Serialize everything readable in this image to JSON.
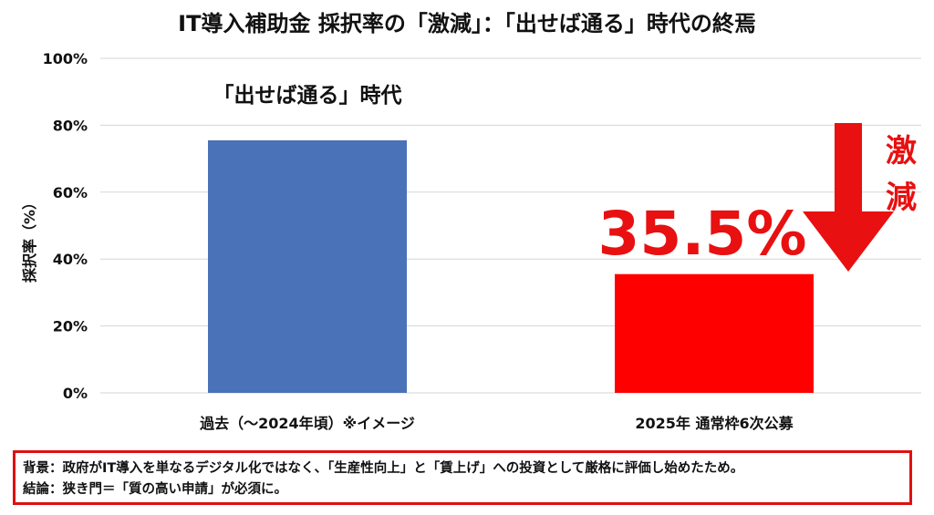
{
  "chart_data": {
    "type": "bar",
    "title": "IT導入補助金 採択率の「激減」：「出せば通る」時代の終焉",
    "ylabel": "採択率（%）",
    "ylim": [
      0,
      100
    ],
    "yticks": [
      "0%",
      "20%",
      "40%",
      "60%",
      "80%",
      "100%"
    ],
    "grid": true,
    "categories": [
      "過去（〜2024年頃）※イメージ",
      "2025年 通常枠6次公募"
    ],
    "values": [
      75.5,
      35.5
    ],
    "colors": [
      "#4a72b8",
      "#ff0000"
    ],
    "annotations": {
      "past_label": "「出せば通る」時代",
      "value_label": "35.5%",
      "drop_label": "激減"
    }
  },
  "notes": {
    "background": "背景：政府がIT導入を単なるデジタル化ではなく、「生産性向上」と「賃上げ」への投資として厳格に評価し始めたため。",
    "conclusion": "結論：狭き門＝「質の高い申請」が必須に。"
  }
}
